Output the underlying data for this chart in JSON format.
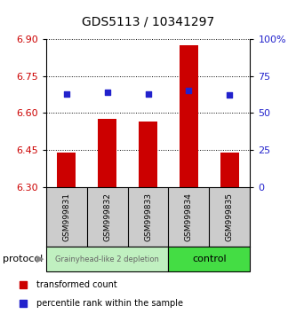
{
  "title": "GDS5113 / 10341297",
  "samples": [
    "GSM999831",
    "GSM999832",
    "GSM999833",
    "GSM999834",
    "GSM999835"
  ],
  "bar_values": [
    6.44,
    6.575,
    6.565,
    6.875,
    6.44
  ],
  "bar_base": 6.3,
  "percentile_values": [
    63,
    64,
    63,
    65,
    62
  ],
  "left_ylim": [
    6.3,
    6.9
  ],
  "right_ylim": [
    0,
    100
  ],
  "left_yticks": [
    6.3,
    6.45,
    6.6,
    6.75,
    6.9
  ],
  "right_yticks": [
    0,
    25,
    50,
    75,
    100
  ],
  "right_yticklabels": [
    "0",
    "25",
    "50",
    "75",
    "100%"
  ],
  "bar_color": "#cc0000",
  "dot_color": "#2222cc",
  "grid_color": "#000000",
  "group1_label": "Grainyhead-like 2 depletion",
  "group2_label": "control",
  "group1_color": "#c0f0c0",
  "group2_color": "#44dd44",
  "protocol_label": "protocol",
  "legend_bar_label": "transformed count",
  "legend_dot_label": "percentile rank within the sample",
  "tick_label_color_left": "#cc0000",
  "tick_label_color_right": "#2222cc",
  "background_color": "#ffffff",
  "plot_bg_color": "#ffffff",
  "sample_bg_color": "#cccccc"
}
